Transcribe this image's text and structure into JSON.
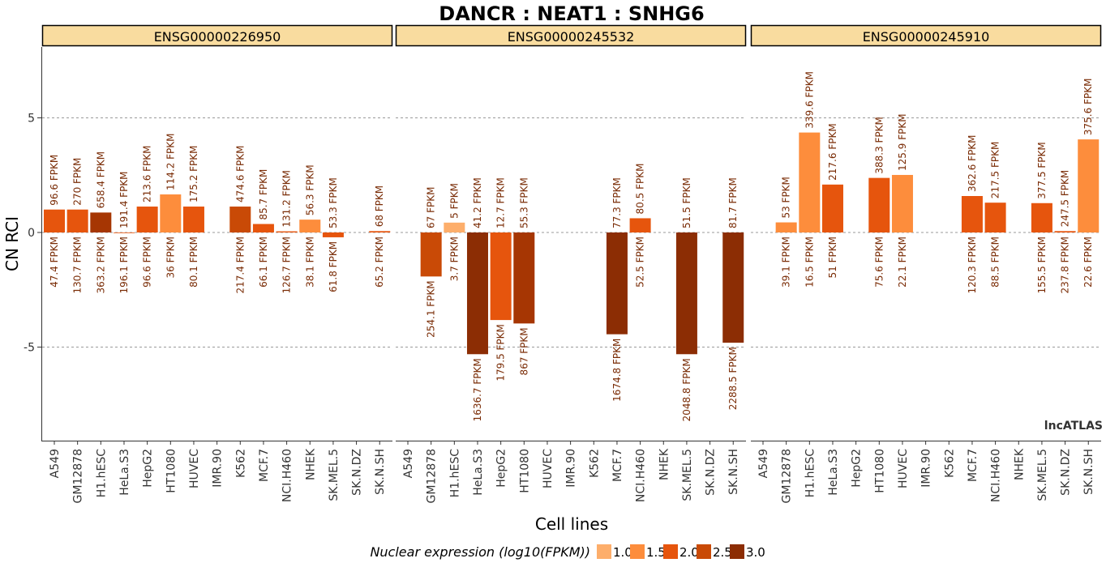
{
  "chart_data": {
    "type": "bar",
    "title": "DANCR : NEAT1 : SNHG6",
    "xlabel": "Cell lines",
    "ylabel": "CN RCI",
    "watermark": "lncATLAS",
    "ylim": [
      -9.1,
      8.1
    ],
    "yticks": [
      -5,
      0,
      5
    ],
    "grid": true,
    "legend_position": "bottom",
    "legend_title": "Nuclear expression (log10(FPKM))",
    "legend": [
      {
        "label": "1.0",
        "color": "#FDAE6B"
      },
      {
        "label": "1.5",
        "color": "#FD8D3C"
      },
      {
        "label": "2.0",
        "color": "#E6550D"
      },
      {
        "label": "2.5",
        "color": "#C94A06"
      },
      {
        "label": "3.0",
        "color": "#8C2D04"
      }
    ],
    "categories": [
      "A549",
      "GM12878",
      "H1.hESC",
      "HeLa.S3",
      "HepG2",
      "HT1080",
      "HUVEC",
      "IMR.90",
      "K562",
      "MCF.7",
      "NCI.H460",
      "NHEK",
      "SK.MEL.5",
      "SK.N.DZ",
      "SK.N.SH"
    ],
    "panels": [
      {
        "name": "ENSG00000226950",
        "bars": [
          {
            "cat": "A549",
            "value": 1.0,
            "cyto": "96.6 FPKM",
            "nuc": "47.4 FPKM",
            "color": "#E6550D"
          },
          {
            "cat": "GM12878",
            "value": 1.0,
            "cyto": "270 FPKM",
            "nuc": "130.7 FPKM",
            "color": "#E6550D"
          },
          {
            "cat": "H1.hESC",
            "value": 0.87,
            "cyto": "658.4 FPKM",
            "nuc": "363.2 FPKM",
            "color": "#A63603"
          },
          {
            "cat": "HeLa.S3",
            "value": 0.0,
            "cyto": "191.4 FPKM",
            "nuc": "196.1 FPKM",
            "color": "#E6550D"
          },
          {
            "cat": "HepG2",
            "value": 1.13,
            "cyto": "213.6 FPKM",
            "nuc": "96.6 FPKM",
            "color": "#E6550D"
          },
          {
            "cat": "HT1080",
            "value": 1.66,
            "cyto": "114.2 FPKM",
            "nuc": "36 FPKM",
            "color": "#FD8D3C"
          },
          {
            "cat": "HUVEC",
            "value": 1.13,
            "cyto": "175.2 FPKM",
            "nuc": "80.1 FPKM",
            "color": "#E6550D"
          },
          {
            "cat": "K562",
            "value": 1.13,
            "cyto": "474.6 FPKM",
            "nuc": "217.4 FPKM",
            "color": "#C94A06"
          },
          {
            "cat": "MCF.7",
            "value": 0.37,
            "cyto": "85.7 FPKM",
            "nuc": "66.1 FPKM",
            "color": "#E6550D"
          },
          {
            "cat": "NCI.H460",
            "value": 0.05,
            "cyto": "131.2 FPKM",
            "nuc": "126.7 FPKM",
            "color": "#E6550D"
          },
          {
            "cat": "NHEK",
            "value": 0.56,
            "cyto": "56.3 FPKM",
            "nuc": "38.1 FPKM",
            "color": "#FD8D3C"
          },
          {
            "cat": "SK.MEL.5",
            "value": -0.21,
            "cyto": "53.3 FPKM",
            "nuc": "61.8 FPKM",
            "color": "#E6550D"
          },
          {
            "cat": "SK.N.SH",
            "value": 0.06,
            "cyto": "68 FPKM",
            "nuc": "65.2 FPKM",
            "color": "#E6550D"
          }
        ]
      },
      {
        "name": "ENSG00000245532",
        "bars": [
          {
            "cat": "GM12878",
            "value": -1.92,
            "cyto": "67 FPKM",
            "nuc": "254.1 FPKM",
            "color": "#C94A06"
          },
          {
            "cat": "H1.hESC",
            "value": 0.43,
            "cyto": "5 FPKM",
            "nuc": "3.7 FPKM",
            "color": "#FDAE6B"
          },
          {
            "cat": "HeLa.S3",
            "value": -5.31,
            "cyto": "41.2 FPKM",
            "nuc": "1636.7 FPKM",
            "color": "#8C2D04"
          },
          {
            "cat": "HepG2",
            "value": -3.82,
            "cyto": "12.7 FPKM",
            "nuc": "179.5 FPKM",
            "color": "#E6550D"
          },
          {
            "cat": "HT1080",
            "value": -3.97,
            "cyto": "55.3 FPKM",
            "nuc": "867 FPKM",
            "color": "#A63603"
          },
          {
            "cat": "MCF.7",
            "value": -4.44,
            "cyto": "77.3 FPKM",
            "nuc": "1674.8 FPKM",
            "color": "#8C2D04"
          },
          {
            "cat": "NCI.H460",
            "value": 0.62,
            "cyto": "80.5 FPKM",
            "nuc": "52.5 FPKM",
            "color": "#E6550D"
          },
          {
            "cat": "SK.MEL.5",
            "value": -5.31,
            "cyto": "51.5 FPKM",
            "nuc": "2048.8 FPKM",
            "color": "#8C2D04"
          },
          {
            "cat": "SK.N.SH",
            "value": -4.81,
            "cyto": "81.7 FPKM",
            "nuc": "2288.5 FPKM",
            "color": "#8C2D04"
          }
        ]
      },
      {
        "name": "ENSG00000245910",
        "bars": [
          {
            "cat": "GM12878",
            "value": 0.44,
            "cyto": "53 FPKM",
            "nuc": "39.1 FPKM",
            "color": "#FD8D3C"
          },
          {
            "cat": "H1.hESC",
            "value": 4.36,
            "cyto": "339.6 FPKM",
            "nuc": "16.5 FPKM",
            "color": "#FD8D3C"
          },
          {
            "cat": "HeLa.S3",
            "value": 2.09,
            "cyto": "217.6 FPKM",
            "nuc": "51 FPKM",
            "color": "#E6550D"
          },
          {
            "cat": "HT1080",
            "value": 2.38,
            "cyto": "388.3 FPKM",
            "nuc": "75.6 FPKM",
            "color": "#E6550D"
          },
          {
            "cat": "HUVEC",
            "value": 2.51,
            "cyto": "125.9 FPKM",
            "nuc": "22.1 FPKM",
            "color": "#FD8D3C"
          },
          {
            "cat": "MCF.7",
            "value": 1.59,
            "cyto": "362.6 FPKM",
            "nuc": "120.3 FPKM",
            "color": "#E6550D"
          },
          {
            "cat": "NCI.H460",
            "value": 1.3,
            "cyto": "217.5 FPKM",
            "nuc": "88.5 FPKM",
            "color": "#E6550D"
          },
          {
            "cat": "SK.MEL.5",
            "value": 1.28,
            "cyto": "377.5 FPKM",
            "nuc": "155.5 FPKM",
            "color": "#E6550D"
          },
          {
            "cat": "SK.N.DZ",
            "value": 0.06,
            "cyto": "247.5 FPKM",
            "nuc": "237.8 FPKM",
            "color": "#E6550D"
          },
          {
            "cat": "SK.N.SH",
            "value": 4.06,
            "cyto": "375.6 FPKM",
            "nuc": "22.6 FPKM",
            "color": "#FD8D3C"
          }
        ]
      }
    ]
  }
}
